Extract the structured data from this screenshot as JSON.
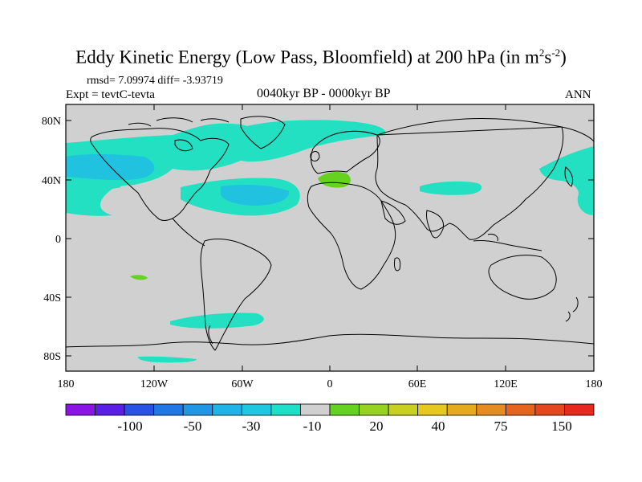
{
  "title": {
    "main": "Eddy Kinetic Energy (Low Pass, Bloomfield) at 200 hPa (in m",
    "sup1": "2",
    "mid": "s",
    "sup2": "-2",
    "close": ")"
  },
  "stats": "rmsd= 7.09974 diff= -3.93719",
  "expt": "Expt = tevtC-tevta",
  "period": "0040kyr BP - 0000kyr BP",
  "season": "ANN",
  "map": {
    "background_color": "#d0d0d0",
    "x_ticks": [
      "180",
      "120W",
      "60W",
      "0",
      "60E",
      "120E",
      "180"
    ],
    "y_ticks": [
      "80N",
      "40N",
      "0",
      "40S",
      "80S"
    ]
  },
  "colorbar": {
    "colors": [
      "#8a14e6",
      "#5a1ee6",
      "#2a50e6",
      "#1e78e6",
      "#1e98e6",
      "#1eb4e6",
      "#1ec8e0",
      "#1ee0c8",
      "#d0d0d0",
      "#64d21e",
      "#96d21e",
      "#c8d21e",
      "#e6c81e",
      "#e6aa1e",
      "#e68c1e",
      "#e6641e",
      "#e6461e",
      "#e6281e"
    ],
    "labels": [
      "-100",
      "-50",
      "-30",
      "-10",
      "20",
      "40",
      "75",
      "150"
    ]
  },
  "colors": {
    "cyan_fill": "#24e0c2",
    "cyan_light": "#2ad6c8",
    "blue_fill": "#20c2e0",
    "green_fill": "#64d21e",
    "coast": "#000000"
  }
}
